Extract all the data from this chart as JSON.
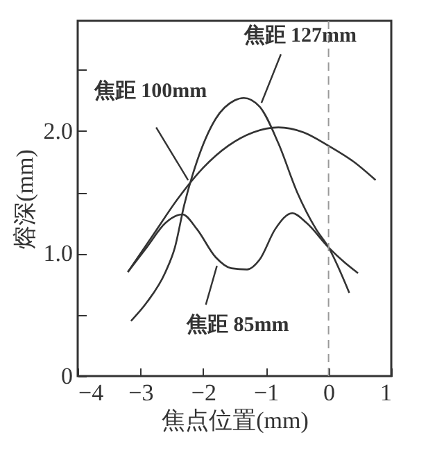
{
  "chart_data": {
    "type": "line",
    "xlabel": "焦点位置(mm)",
    "ylabel": "熔深(mm)",
    "xlim": [
      -4,
      1
    ],
    "xticks": [
      -4,
      -3,
      -2,
      -1,
      0,
      1
    ],
    "ylim": [
      0,
      2.9
    ],
    "yticks": [
      0,
      {
        "value": 0.5,
        "label": null
      },
      {
        "value": 1,
        "label": "1.0"
      },
      {
        "value": 1.5,
        "label": null
      },
      {
        "value": 2,
        "label": "2.0"
      },
      {
        "value": 2.5,
        "label": null
      }
    ],
    "grid": false,
    "legend": false,
    "marker": "none",
    "line_style": "solid",
    "series": [
      {
        "color": "#333333",
        "x": [
          -3.15,
          -2.9,
          -2.6,
          -2.45,
          -2.3,
          -2.1,
          -1.8,
          -1.5,
          -1.35,
          -1.1,
          -0.8,
          -0.5,
          -0.2,
          0,
          0.33
        ],
        "values": [
          0.45,
          0.6,
          0.85,
          1.05,
          1.4,
          1.75,
          2.1,
          2.25,
          2.27,
          2.2,
          1.9,
          1.5,
          1.2,
          1.05,
          0.68
        ]
      },
      {
        "color": "#333333",
        "x": [
          -3.2,
          -2.8,
          -2.4,
          -2.0,
          -1.6,
          -1.2,
          -0.8,
          -0.4,
          0,
          0.4,
          0.75
        ],
        "values": [
          0.85,
          1.15,
          1.45,
          1.7,
          1.88,
          1.99,
          2.03,
          1.99,
          1.88,
          1.75,
          1.6
        ]
      },
      {
        "color": "#333333",
        "x": [
          -3.2,
          -2.9,
          -2.6,
          -2.33,
          -2.1,
          -1.8,
          -1.55,
          -1.3,
          -1.1,
          -0.85,
          -0.58,
          -0.35,
          0,
          0.25,
          0.47
        ],
        "values": [
          0.85,
          1.05,
          1.25,
          1.32,
          1.2,
          0.97,
          0.88,
          0.87,
          0.95,
          1.2,
          1.33,
          1.25,
          1.05,
          0.93,
          0.84
        ]
      }
    ],
    "ref_lines": [
      {
        "axis": "x",
        "value": 0,
        "label": null,
        "color": "#999999",
        "line_style": "dashed"
      }
    ],
    "annotations": [
      {
        "text": "焦距 127mm",
        "x": -1.07,
        "y": 2.23
      },
      {
        "text": "焦距 100mm",
        "x": -2.24,
        "y": 1.6
      },
      {
        "text": "焦距 85mm",
        "x": -1.78,
        "y": 0.9
      }
    ]
  }
}
